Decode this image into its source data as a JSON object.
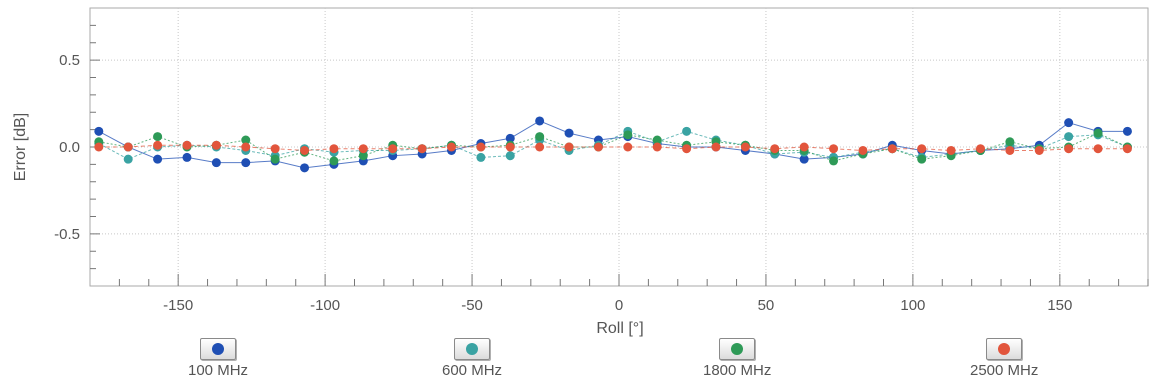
{
  "chart_data": {
    "type": "line",
    "xlabel": "Roll [°]",
    "ylabel": "Error [dB]",
    "xlim": [
      -180,
      180
    ],
    "ylim": [
      -0.8,
      0.8
    ],
    "x_ticks": [
      -150,
      -100,
      -50,
      0,
      50,
      100,
      150
    ],
    "y_ticks": [
      0.5,
      0.0,
      -0.5
    ],
    "x_tick_labels": [
      "-150",
      "-100",
      "-50",
      "0",
      "50",
      "100",
      "150"
    ],
    "y_tick_labels": [
      "0.5",
      "0.0",
      "-0.5"
    ],
    "grid": true,
    "legend_position": "bottom",
    "x": [
      -177,
      -167,
      -157,
      -147,
      -137,
      -127,
      -117,
      -107,
      -97,
      -87,
      -77,
      -67,
      -57,
      -47,
      -37,
      -27,
      -17,
      -7,
      3,
      13,
      23,
      33,
      43,
      53,
      63,
      73,
      83,
      93,
      103,
      113,
      123,
      133,
      143,
      153,
      163,
      173
    ],
    "series": [
      {
        "name": "100 MHz",
        "color": "#1f4fb4",
        "values": [
          0.09,
          0.0,
          -0.07,
          -0.06,
          -0.09,
          -0.09,
          -0.08,
          -0.12,
          -0.1,
          -0.08,
          -0.05,
          -0.04,
          -0.02,
          0.02,
          0.05,
          0.15,
          0.08,
          0.04,
          0.06,
          0.02,
          0.0,
          0.0,
          -0.02,
          -0.04,
          -0.07,
          -0.06,
          -0.04,
          0.01,
          -0.02,
          -0.04,
          -0.02,
          -0.01,
          0.01,
          0.14,
          0.09,
          0.09
        ]
      },
      {
        "name": "600 MHz",
        "color": "#3aa3a3",
        "values": [
          0.02,
          -0.07,
          0.0,
          0.01,
          0.0,
          -0.02,
          -0.05,
          -0.01,
          -0.03,
          -0.02,
          -0.02,
          -0.01,
          0.01,
          -0.06,
          -0.05,
          0.04,
          -0.02,
          0.01,
          0.09,
          0.03,
          0.09,
          0.04,
          0.01,
          -0.04,
          -0.03,
          -0.06,
          -0.03,
          -0.01,
          -0.06,
          -0.04,
          -0.02,
          0.01,
          -0.01,
          0.06,
          0.07,
          0.0
        ]
      },
      {
        "name": "1800 MHz",
        "color": "#2e9a57",
        "values": [
          0.03,
          0.0,
          0.06,
          0.0,
          0.01,
          0.04,
          -0.07,
          -0.03,
          -0.08,
          -0.05,
          0.01,
          -0.01,
          0.01,
          0.0,
          0.01,
          0.06,
          0.0,
          0.0,
          0.07,
          0.04,
          0.01,
          0.03,
          0.01,
          -0.02,
          -0.02,
          -0.08,
          -0.04,
          -0.01,
          -0.07,
          -0.05,
          -0.02,
          0.03,
          -0.01,
          0.0,
          0.08,
          0.0
        ]
      },
      {
        "name": "2500 MHz",
        "color": "#e2553c",
        "values": [
          0.0,
          0.0,
          0.01,
          0.01,
          0.01,
          0.0,
          -0.01,
          -0.02,
          -0.01,
          -0.01,
          -0.01,
          -0.01,
          0.0,
          0.0,
          0.0,
          0.0,
          0.0,
          0.0,
          0.0,
          0.0,
          -0.01,
          0.0,
          0.0,
          -0.01,
          0.0,
          -0.01,
          -0.02,
          -0.01,
          -0.01,
          -0.02,
          -0.01,
          -0.02,
          -0.02,
          -0.01,
          -0.01,
          -0.01
        ]
      }
    ]
  },
  "legend": [
    {
      "label": "100 MHz",
      "color": "#1f4fb4"
    },
    {
      "label": "600 MHz",
      "color": "#3aa3a3"
    },
    {
      "label": "1800 MHz",
      "color": "#2e9a57"
    },
    {
      "label": "2500 MHz",
      "color": "#e2553c"
    }
  ]
}
